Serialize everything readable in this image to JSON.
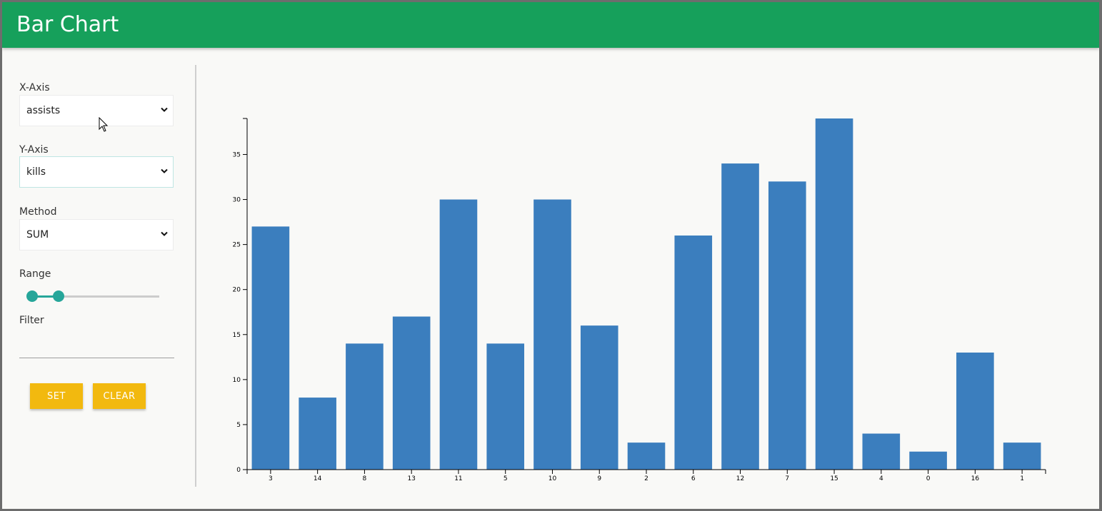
{
  "header": {
    "title": "Bar Chart"
  },
  "controls": {
    "x_axis": {
      "label": "X-Axis",
      "value": "assists"
    },
    "y_axis": {
      "label": "Y-Axis",
      "value": "kills"
    },
    "method": {
      "label": "Method",
      "value": "SUM"
    },
    "range": {
      "label": "Range",
      "low_fraction": 0.0,
      "high_fraction": 0.21
    },
    "filter": {
      "label": "Filter",
      "value": ""
    },
    "set_label": "SET",
    "clear_label": "CLEAR"
  },
  "colors": {
    "appbar": "#16a05b",
    "bar": "#3b7ebe",
    "accent": "#26a69a",
    "button": "#f2b90f"
  },
  "chart_data": {
    "type": "bar",
    "categories": [
      "3",
      "14",
      "8",
      "13",
      "11",
      "5",
      "10",
      "9",
      "2",
      "6",
      "12",
      "7",
      "15",
      "4",
      "0",
      "16",
      "1"
    ],
    "values": [
      27,
      8,
      14,
      17,
      30,
      14,
      30,
      16,
      3,
      26,
      34,
      32,
      39,
      4,
      2,
      13,
      3
    ],
    "ylim": [
      0,
      39
    ],
    "yticks": [
      0,
      5,
      10,
      15,
      20,
      25,
      30,
      35
    ],
    "grid": false
  }
}
